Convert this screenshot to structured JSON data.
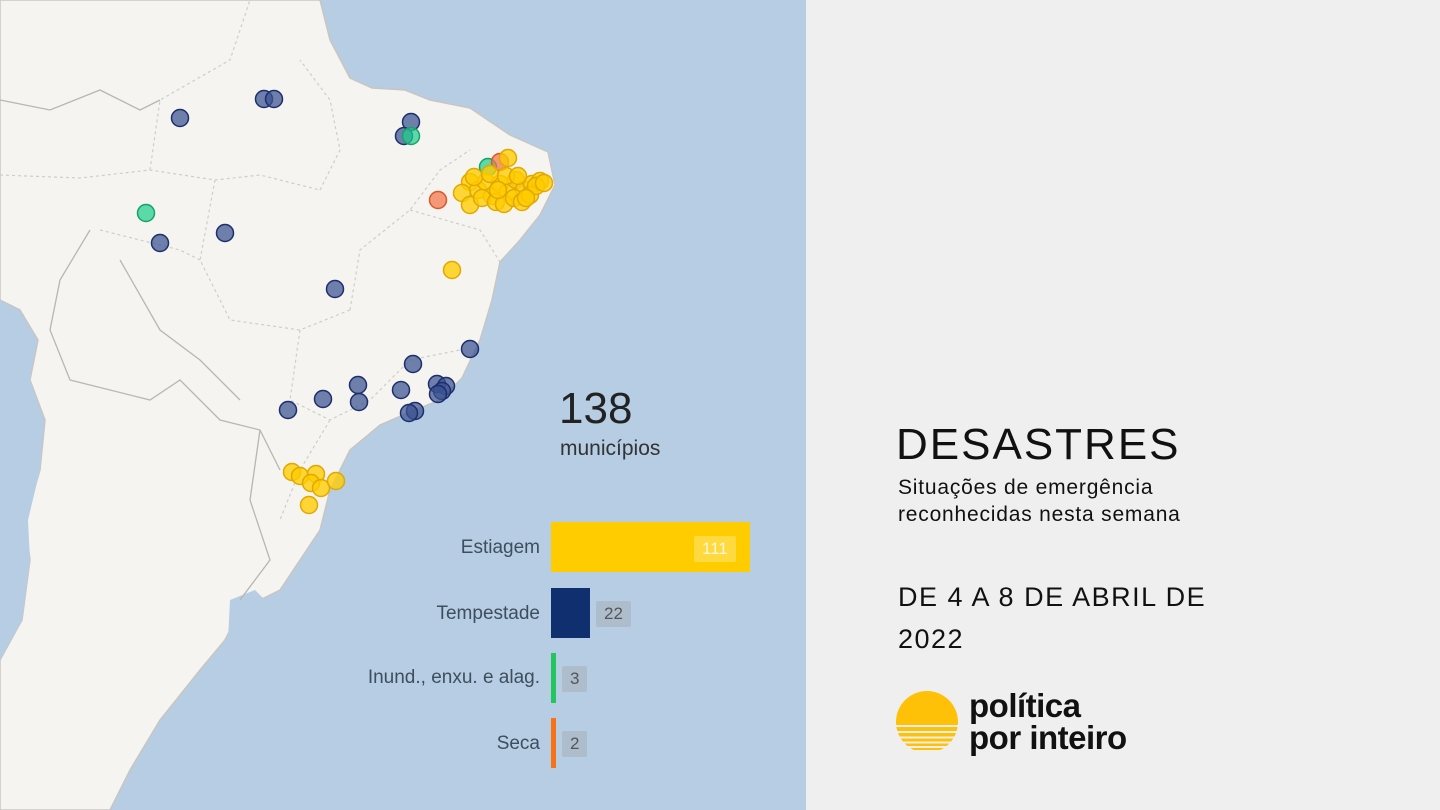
{
  "summary": {
    "total": "138",
    "total_label": "municípios"
  },
  "chart_data": {
    "type": "bar",
    "orientation": "horizontal",
    "categories": [
      "Estiagem",
      "Tempestade",
      "Inund., enxu. e alag.",
      "Seca"
    ],
    "values": [
      111,
      22,
      3,
      2
    ],
    "colors": [
      "#ffcc00",
      "#0f2f6e",
      "#22c55e",
      "#f97316"
    ]
  },
  "categories": [
    {
      "label": "Estiagem",
      "count": "111",
      "color": "#ffcc00"
    },
    {
      "label": "Tempestade",
      "count": "22",
      "color": "#0f2f6e"
    },
    {
      "label": "Inund., enxu. e alag.",
      "count": "3",
      "color": "#22c55e"
    },
    {
      "label": "Seca",
      "count": "2",
      "color": "#f97316"
    }
  ],
  "header": {
    "title": "DESASTRES",
    "subtitle_line1": "Situações de emergência",
    "subtitle_line2": "reconhecidas nesta semana",
    "dates_line1": "DE 4 A 8 DE ABRIL DE",
    "dates_line2": "2022"
  },
  "brand": {
    "line1": "política",
    "line2": "por inteiro",
    "color": "#ffc107"
  },
  "map": {
    "ocean_color": "#b6cde3",
    "land_color": "#f6f4f1",
    "border_color": "#c8c6c2",
    "icon": "brazil-map"
  }
}
